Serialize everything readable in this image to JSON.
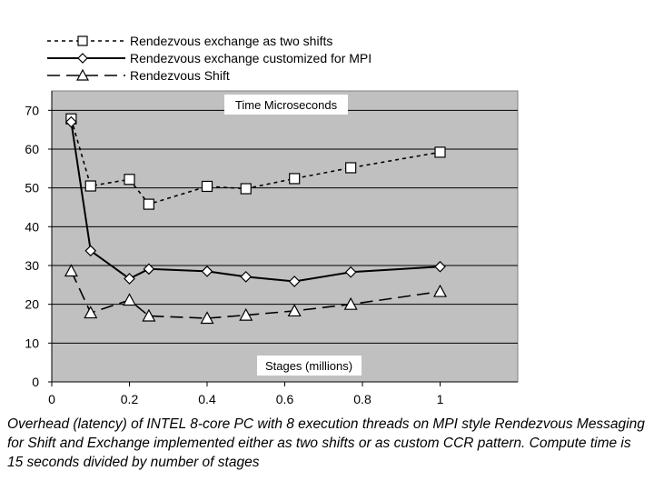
{
  "chart_data": {
    "type": "line",
    "title": "Time Microseconds",
    "xlabel": "Stages (millions)",
    "ylabel": "",
    "xlim": [
      0,
      1.2
    ],
    "ylim": [
      0,
      75
    ],
    "xticks": [
      "0",
      "0.2",
      "0.4",
      "0.6",
      "0.8",
      "1"
    ],
    "yticks": [
      "0",
      "10",
      "20",
      "30",
      "40",
      "50",
      "60",
      "70"
    ],
    "grid": true,
    "legend_position": "top-left",
    "series": [
      {
        "name": "Rendezvous exchange as two shifts",
        "style": "dotted",
        "marker": "square",
        "points": [
          [
            0.05,
            67.8
          ],
          [
            0.1,
            50.5
          ],
          [
            0.2,
            52.2
          ],
          [
            0.25,
            45.8
          ],
          [
            0.4,
            50.4
          ],
          [
            0.5,
            49.8
          ],
          [
            0.625,
            52.4
          ],
          [
            0.77,
            55.2
          ],
          [
            1.0,
            59.2
          ]
        ]
      },
      {
        "name": "Rendezvous exchange customized for MPI",
        "style": "solid",
        "marker": "diamond",
        "points": [
          [
            0.05,
            67.0
          ],
          [
            0.1,
            33.8
          ],
          [
            0.2,
            26.6
          ],
          [
            0.25,
            29.1
          ],
          [
            0.4,
            28.5
          ],
          [
            0.5,
            27.1
          ],
          [
            0.625,
            25.9
          ],
          [
            0.77,
            28.3
          ],
          [
            1.0,
            29.7
          ]
        ]
      },
      {
        "name": "Rendezvous Shift",
        "style": "dashed",
        "marker": "triangle",
        "points": [
          [
            0.05,
            28.6
          ],
          [
            0.1,
            17.8
          ],
          [
            0.2,
            21.1
          ],
          [
            0.25,
            17.0
          ],
          [
            0.4,
            16.4
          ],
          [
            0.5,
            17.2
          ],
          [
            0.625,
            18.3
          ],
          [
            0.77,
            20.0
          ],
          [
            1.0,
            23.3
          ]
        ]
      }
    ]
  },
  "caption": "Overhead (latency) of INTEL 8-core PC with 8 execution threads on MPI style Rendezvous Messaging for Shift and Exchange implemented either as two shifts or as custom CCR pattern. Compute time is 15 seconds divided by number of stages",
  "colors": {
    "plot_background": "#c0c0c0",
    "line": "#000000",
    "marker_fill": "#ffffff",
    "gridline": "#000000"
  }
}
